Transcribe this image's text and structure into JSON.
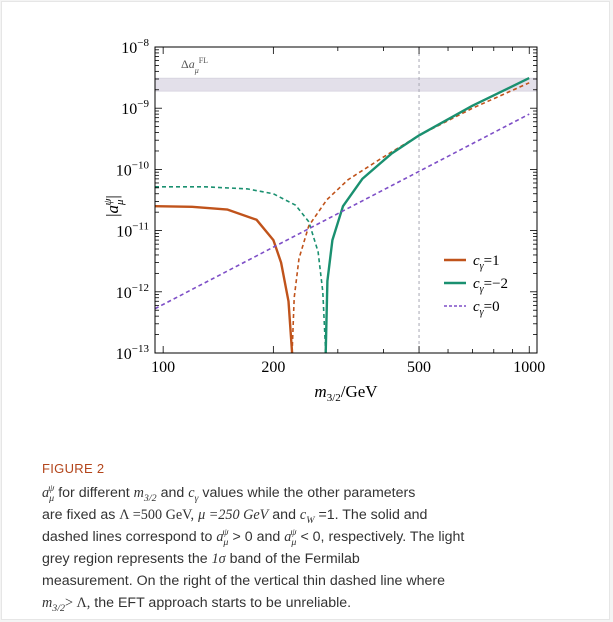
{
  "figure": {
    "label": "FIGURE 2",
    "caption": {
      "l1_t1": "for different",
      "l1_t2": "and",
      "l1_t3": "values while the other parameters",
      "l2_t1": "are fixed as",
      "l2_lambda": "Λ =500 GeV,",
      "l2_mu": "μ =250 GeV",
      "l2_t2": "and",
      "l2_cw": "=1.",
      "l2_t3": "The solid and",
      "l3_t1": "dashed lines correspond to",
      "l3_gt": "> 0",
      "l3_and": "and",
      "l3_lt": "< 0,",
      "l3_t2": "respectively. The light",
      "l4_t1": "grey region represents the",
      "l4_sig": "1σ",
      "l4_t2": "band of the Fermilab",
      "l5": "measurement. On the right of the vertical thin dashed line where",
      "l6_gt": "> Λ,",
      "l6_t": "the EFT approach starts to be unreliable."
    }
  },
  "chart_data": {
    "type": "line",
    "xlabel": "m3/2/GeV",
    "ylabel": "|aμψ|",
    "x_scale": "log",
    "y_scale": "log",
    "xlim": [
      95,
      1050
    ],
    "ylim": [
      1e-13,
      1e-08
    ],
    "x_ticks": [
      {
        "v": 100,
        "label": "100"
      },
      {
        "v": 200,
        "label": "200"
      },
      {
        "v": 500,
        "label": "500"
      },
      {
        "v": 1000,
        "label": "1000"
      }
    ],
    "y_ticks": [
      {
        "v": 1e-08,
        "mant": "10",
        "exp": "−8"
      },
      {
        "v": 1e-09,
        "mant": "10",
        "exp": "−9"
      },
      {
        "v": 1e-10,
        "mant": "10",
        "exp": "−10"
      },
      {
        "v": 1e-11,
        "mant": "10",
        "exp": "−11"
      },
      {
        "v": 1e-12,
        "mant": "10",
        "exp": "−12"
      },
      {
        "v": 1e-13,
        "mant": "10",
        "exp": "−13"
      }
    ],
    "band": {
      "label": "ΔaμFL",
      "ymin": 1.9e-09,
      "ymax": 3.1e-09,
      "color": "#e3e0ea"
    },
    "vline": {
      "x": 500,
      "color": "#a8a8b4"
    },
    "legend_position": "lower-right",
    "series": [
      {
        "name": "cγ=1",
        "color": "#c0531b",
        "segments": [
          {
            "style": "solid",
            "points": [
              [
                95,
                2.5e-11
              ],
              [
                120,
                2.45e-11
              ],
              [
                150,
                2.2e-11
              ],
              [
                180,
                1.5e-11
              ],
              [
                200,
                7e-12
              ],
              [
                210,
                3e-12
              ],
              [
                220,
                7e-13
              ],
              [
                225,
                1e-13
              ]
            ]
          },
          {
            "style": "dashed",
            "points": [
              [
                225,
                1e-13
              ],
              [
                228,
                8e-13
              ],
              [
                235,
                3.5e-12
              ],
              [
                250,
                1.2e-11
              ],
              [
                280,
                3.2e-11
              ],
              [
                320,
                6.8e-11
              ],
              [
                400,
                1.6e-10
              ],
              [
                500,
                3.6e-10
              ],
              [
                700,
                1e-09
              ],
              [
                1000,
                2.6e-09
              ]
            ]
          }
        ]
      },
      {
        "name": "cγ=−2",
        "color": "#1a9070",
        "segments": [
          {
            "style": "dashed",
            "points": [
              [
                95,
                5.2e-11
              ],
              [
                130,
                5.2e-11
              ],
              [
                170,
                4.8e-11
              ],
              [
                200,
                4e-11
              ],
              [
                230,
                2.6e-11
              ],
              [
                250,
                1.4e-11
              ],
              [
                265,
                4.5e-12
              ],
              [
                273,
                1e-12
              ],
              [
                278,
                1e-13
              ]
            ]
          },
          {
            "style": "solid",
            "points": [
              [
                278,
                1e-13
              ],
              [
                281,
                1.5e-12
              ],
              [
                290,
                7e-12
              ],
              [
                310,
                2.5e-11
              ],
              [
                350,
                7e-11
              ],
              [
                420,
                1.8e-10
              ],
              [
                500,
                3.6e-10
              ],
              [
                700,
                1.1e-09
              ],
              [
                1000,
                3.1e-09
              ]
            ]
          }
        ]
      },
      {
        "name": "cγ=0",
        "color": "#7e4fc7",
        "segments": [
          {
            "style": "dashed",
            "points": [
              [
                95,
                5.3e-13
              ],
              [
                1000,
                8e-10
              ]
            ]
          }
        ]
      }
    ]
  }
}
